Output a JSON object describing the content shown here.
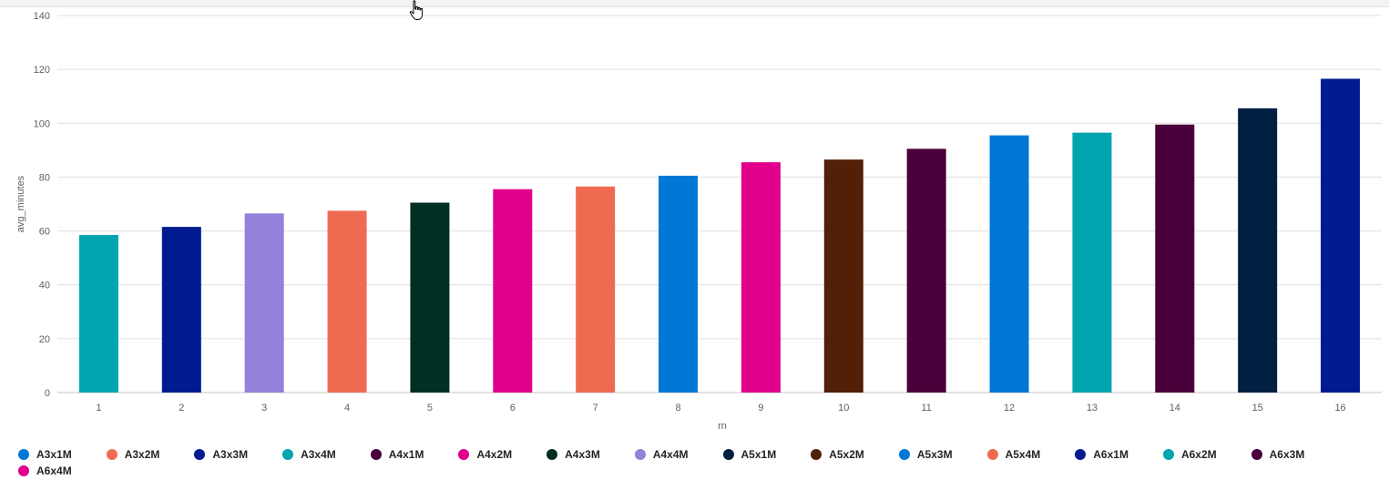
{
  "chart_data": {
    "type": "bar",
    "xlabel": "rn",
    "ylabel": "avg_minutes",
    "ylim": [
      0,
      140
    ],
    "yticks": [
      "0",
      "20",
      "40",
      "60",
      "80",
      "100",
      "120",
      "140"
    ],
    "grid": true,
    "legend_position": "bottom",
    "categories": [
      "1",
      "2",
      "3",
      "4",
      "5",
      "6",
      "7",
      "8",
      "9",
      "10",
      "11",
      "12",
      "13",
      "14",
      "15",
      "16"
    ],
    "values": [
      58.5,
      61.5,
      66.5,
      67.5,
      70.5,
      75.5,
      76.5,
      80.5,
      85.5,
      86.5,
      90.5,
      95.5,
      96.5,
      99.5,
      105.5,
      116.5
    ],
    "bar_colors": [
      "#01A5AF",
      "#001B8F",
      "#9381DA",
      "#EE6B52",
      "#012F23",
      "#E0008C",
      "#EE6B52",
      "#0278D6",
      "#E0008C",
      "#521F08",
      "#4A003A",
      "#0278D6",
      "#01A5AF",
      "#4A003A",
      "#001F43",
      "#001B8F"
    ],
    "legend": [
      {
        "name": "A3x1M",
        "color": "#0278D6"
      },
      {
        "name": "A3x2M",
        "color": "#EE6B52"
      },
      {
        "name": "A3x3M",
        "color": "#001B8F"
      },
      {
        "name": "A3x4M",
        "color": "#01A5AF"
      },
      {
        "name": "A4x1M",
        "color": "#4A003A"
      },
      {
        "name": "A4x2M",
        "color": "#E0008C"
      },
      {
        "name": "A4x3M",
        "color": "#012F23"
      },
      {
        "name": "A4x4M",
        "color": "#9381DA"
      },
      {
        "name": "A5x1M",
        "color": "#001F43"
      },
      {
        "name": "A5x2M",
        "color": "#521F08"
      },
      {
        "name": "A5x3M",
        "color": "#0278D6"
      },
      {
        "name": "A5x4M",
        "color": "#EE6B52"
      },
      {
        "name": "A6x1M",
        "color": "#001B8F"
      },
      {
        "name": "A6x2M",
        "color": "#01A5AF"
      },
      {
        "name": "A6x3M",
        "color": "#4A003A"
      },
      {
        "name": "A6x4M",
        "color": "#E0008C"
      }
    ]
  }
}
